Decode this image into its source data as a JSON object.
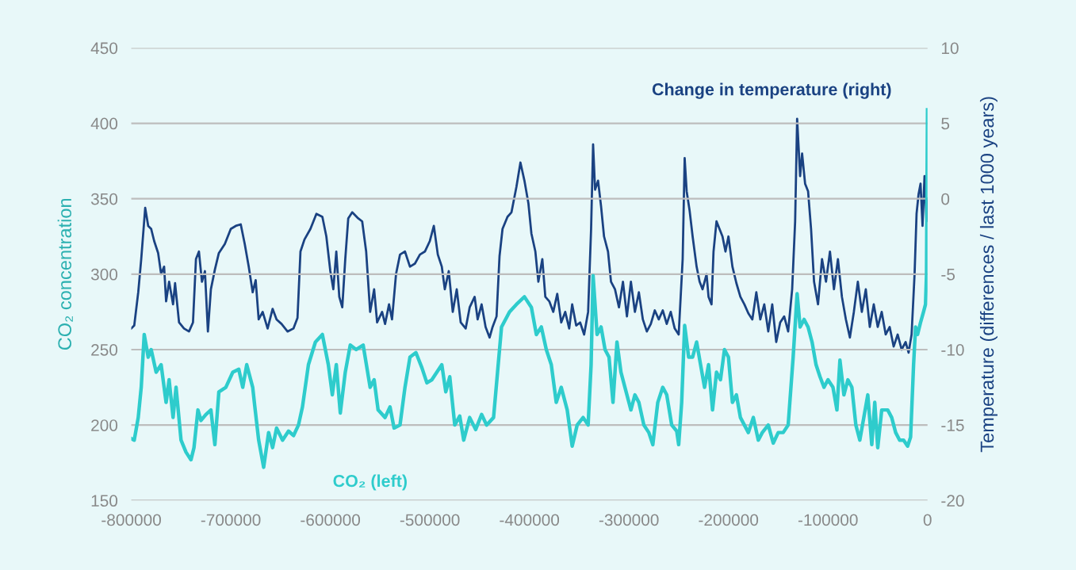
{
  "chart_data": {
    "type": "line",
    "ylabel": "CO₂ concentration",
    "y2label": "Temperature (differences / last 1000 years)",
    "xlim": [
      -800000,
      0
    ],
    "xticks": [
      -800000,
      -700000,
      -600000,
      -500000,
      -400000,
      -300000,
      -200000,
      -100000,
      0
    ],
    "ylim": [
      150,
      450
    ],
    "yticks": [
      150,
      200,
      250,
      300,
      350,
      400,
      450
    ],
    "y2lim": [
      -20,
      10
    ],
    "y2ticks": [
      -20,
      -15,
      -10,
      -5,
      0,
      5,
      10
    ],
    "grid": "y",
    "legend": false,
    "marker": "none",
    "line_style": "solid",
    "series": [
      {
        "name": "CO₂ (left)",
        "color": "#2ecccc",
        "axis": "y",
        "x": [
          -800000,
          -797000,
          -793000,
          -790000,
          -787000,
          -783000,
          -780000,
          -775000,
          -770000,
          -765000,
          -762000,
          -758000,
          -755000,
          -750000,
          -745000,
          -740000,
          -737000,
          -733000,
          -730000,
          -725000,
          -720000,
          -716000,
          -712000,
          -705000,
          -698000,
          -692000,
          -688000,
          -684000,
          -678000,
          -676000,
          -672000,
          -667000,
          -662000,
          -658000,
          -654000,
          -648000,
          -642000,
          -637000,
          -632000,
          -628000,
          -622000,
          -615000,
          -608000,
          -602000,
          -598000,
          -594000,
          -590000,
          -585000,
          -580000,
          -574000,
          -567000,
          -560000,
          -556000,
          -552000,
          -545000,
          -540000,
          -536000,
          -530000,
          -525000,
          -520000,
          -514000,
          -508000,
          -503000,
          -498000,
          -493000,
          -488000,
          -484000,
          -480000,
          -475000,
          -470000,
          -466000,
          -460000,
          -454000,
          -448000,
          -443000,
          -436000,
          -432000,
          -428000,
          -420000,
          -413000,
          -405000,
          -398000,
          -393000,
          -388000,
          -383000,
          -378000,
          -373000,
          -368000,
          -362000,
          -357000,
          -352000,
          -346000,
          -341000,
          -338000,
          -336000,
          -332000,
          -328000,
          -324000,
          -320000,
          -316000,
          -312000,
          -308000,
          -304000,
          -298000,
          -294000,
          -290000,
          -285000,
          -280000,
          -276000,
          -271000,
          -266000,
          -262000,
          -257000,
          -252000,
          -250000,
          -247000,
          -244000,
          -240000,
          -236000,
          -232000,
          -228000,
          -224000,
          -220000,
          -216000,
          -212000,
          -208000,
          -204000,
          -200000,
          -196000,
          -192000,
          -188000,
          -184000,
          -180000,
          -175000,
          -170000,
          -166000,
          -160000,
          -155000,
          -150000,
          -145000,
          -140000,
          -135000,
          -131000,
          -128000,
          -124000,
          -120000,
          -116000,
          -112000,
          -108000,
          -104000,
          -100000,
          -95000,
          -91000,
          -88000,
          -84000,
          -80000,
          -76000,
          -72000,
          -68000,
          -64000,
          -60000,
          -56000,
          -53000,
          -50000,
          -46000,
          -40000,
          -36000,
          -32000,
          -28000,
          -24000,
          -20000,
          -17000,
          -14000,
          -12000,
          -10000,
          -7000,
          -4000,
          -2000,
          -1000,
          0
        ],
        "values": [
          191,
          190,
          205,
          225,
          260,
          245,
          250,
          235,
          240,
          215,
          230,
          205,
          225,
          190,
          182,
          177,
          185,
          210,
          203,
          207,
          210,
          187,
          222,
          225,
          235,
          237,
          225,
          240,
          225,
          213,
          190,
          172,
          195,
          185,
          198,
          190,
          196,
          193,
          200,
          212,
          240,
          255,
          260,
          240,
          220,
          240,
          208,
          235,
          253,
          250,
          253,
          225,
          230,
          210,
          205,
          212,
          198,
          200,
          225,
          245,
          248,
          238,
          228,
          230,
          235,
          240,
          222,
          232,
          200,
          206,
          190,
          205,
          197,
          207,
          200,
          205,
          235,
          265,
          275,
          280,
          285,
          278,
          260,
          265,
          250,
          240,
          215,
          225,
          210,
          186,
          200,
          205,
          200,
          240,
          299,
          260,
          265,
          250,
          245,
          215,
          255,
          235,
          225,
          210,
          220,
          215,
          200,
          195,
          187,
          215,
          225,
          220,
          200,
          196,
          187,
          215,
          266,
          245,
          245,
          255,
          240,
          225,
          240,
          210,
          235,
          230,
          250,
          245,
          215,
          220,
          205,
          200,
          195,
          205,
          190,
          195,
          200,
          188,
          195,
          195,
          200,
          245,
          287,
          265,
          270,
          265,
          255,
          240,
          232,
          225,
          230,
          225,
          210,
          243,
          220,
          230,
          225,
          200,
          190,
          205,
          220,
          187,
          215,
          185,
          210,
          210,
          205,
          195,
          190,
          190,
          186,
          192,
          240,
          265,
          260,
          268,
          275,
          280,
          300,
          409
        ]
      },
      {
        "name": "Change in temperature (right)",
        "color": "#1a4282",
        "axis": "y2",
        "x": [
          -800000,
          -797000,
          -793000,
          -790000,
          -786000,
          -783000,
          -780000,
          -777000,
          -773000,
          -770000,
          -767000,
          -765000,
          -762000,
          -758000,
          -756000,
          -752000,
          -747000,
          -742000,
          -738000,
          -735000,
          -732000,
          -729000,
          -726000,
          -723000,
          -720000,
          -716000,
          -712000,
          -706000,
          -700000,
          -695000,
          -690000,
          -686000,
          -682000,
          -678000,
          -675000,
          -672000,
          -668000,
          -663000,
          -658000,
          -654000,
          -649000,
          -643000,
          -637000,
          -633000,
          -630000,
          -626000,
          -620000,
          -614000,
          -608000,
          -604000,
          -600000,
          -597000,
          -594000,
          -591000,
          -588000,
          -585000,
          -582000,
          -578000,
          -572000,
          -568000,
          -564000,
          -560000,
          -556000,
          -553000,
          -548000,
          -545000,
          -541000,
          -538000,
          -534000,
          -530000,
          -525000,
          -520000,
          -515000,
          -510000,
          -505000,
          -500000,
          -496000,
          -492000,
          -488000,
          -485000,
          -481000,
          -477000,
          -473000,
          -469000,
          -464000,
          -460000,
          -455000,
          -452000,
          -448000,
          -444000,
          -440000,
          -437000,
          -433000,
          -430000,
          -427000,
          -422000,
          -418000,
          -413000,
          -409000,
          -405000,
          -401000,
          -398000,
          -394000,
          -391000,
          -387000,
          -384000,
          -380000,
          -376000,
          -372000,
          -368000,
          -364000,
          -360000,
          -357000,
          -353000,
          -349000,
          -345000,
          -341000,
          -338000,
          -336000,
          -334000,
          -331000,
          -328000,
          -325000,
          -321000,
          -318000,
          -314000,
          -310000,
          -306000,
          -302000,
          -298000,
          -294000,
          -290000,
          -286000,
          -282000,
          -278000,
          -274000,
          -270000,
          -266000,
          -262000,
          -258000,
          -254000,
          -250000,
          -246000,
          -244000,
          -242000,
          -239000,
          -236000,
          -232000,
          -229000,
          -226000,
          -222000,
          -220000,
          -217000,
          -215000,
          -212000,
          -209000,
          -206000,
          -203000,
          -200000,
          -196000,
          -192000,
          -188000,
          -184000,
          -180000,
          -176000,
          -172000,
          -168000,
          -164000,
          -160000,
          -156000,
          -152000,
          -148000,
          -144000,
          -140000,
          -136000,
          -133000,
          -131000,
          -128000,
          -126000,
          -123000,
          -120000,
          -117000,
          -114000,
          -110000,
          -106000,
          -102000,
          -98000,
          -94000,
          -90000,
          -86000,
          -82000,
          -78000,
          -74000,
          -70000,
          -66000,
          -62000,
          -58000,
          -54000,
          -50000,
          -46000,
          -42000,
          -38000,
          -34000,
          -30000,
          -26000,
          -22000,
          -19000,
          -16000,
          -13000,
          -11000,
          -9000,
          -7000,
          -5000,
          -3000,
          -1000,
          0
        ],
        "values": [
          -8.6,
          -8.4,
          -6.2,
          -4,
          -0.6,
          -1.8,
          -2,
          -2.8,
          -3.6,
          -5,
          -4.5,
          -6.8,
          -5.5,
          -7,
          -5.6,
          -8.2,
          -8.6,
          -8.8,
          -8.2,
          -4,
          -3.5,
          -5.5,
          -4.8,
          -8.8,
          -6,
          -4.7,
          -3.6,
          -3,
          -2,
          -1.8,
          -1.7,
          -3,
          -4.5,
          -6.2,
          -5.4,
          -8,
          -7.5,
          -8.6,
          -7.3,
          -8,
          -8.3,
          -8.8,
          -8.6,
          -7.9,
          -3.5,
          -2.7,
          -2,
          -1,
          -1.2,
          -2.5,
          -4.8,
          -6,
          -3.5,
          -6.5,
          -7.2,
          -4,
          -1.3,
          -0.9,
          -1.3,
          -1.5,
          -3.5,
          -7.5,
          -6,
          -8.2,
          -7.5,
          -8.3,
          -7,
          -8,
          -5,
          -3.7,
          -3.5,
          -4.5,
          -4.3,
          -3.7,
          -3.5,
          -2.8,
          -1.8,
          -3.7,
          -4.5,
          -6,
          -4.8,
          -7.5,
          -6,
          -8.2,
          -8.6,
          -7.2,
          -6.5,
          -8,
          -7,
          -8.5,
          -9.2,
          -8.5,
          -7.8,
          -3.8,
          -2,
          -1.2,
          -0.9,
          0.8,
          2.4,
          1.2,
          -0.3,
          -2.3,
          -3.5,
          -5.5,
          -4,
          -6.5,
          -6.8,
          -7.5,
          -6.3,
          -8.2,
          -7.5,
          -8.6,
          -7,
          -8.4,
          -8.2,
          -9,
          -7.5,
          -2,
          3.6,
          0.6,
          1.2,
          -0.5,
          -2.5,
          -3.5,
          -5.5,
          -6,
          -7.2,
          -5.5,
          -7.8,
          -5.5,
          -7.5,
          -6.2,
          -8,
          -8.8,
          -8.3,
          -7.4,
          -8,
          -7.4,
          -8.3,
          -7.5,
          -8.6,
          -9,
          -4,
          2.7,
          0.5,
          -0.8,
          -2.5,
          -4.5,
          -5.5,
          -6,
          -5,
          -6.5,
          -7,
          -3.5,
          -1.5,
          -2,
          -2.5,
          -3.5,
          -2.5,
          -4.5,
          -5.6,
          -6.5,
          -7,
          -7.6,
          -8,
          -6.2,
          -8,
          -7,
          -8.8,
          -7,
          -9.5,
          -8.2,
          -7.8,
          -8.8,
          -6,
          -1.5,
          5.3,
          1.5,
          3,
          1,
          0.5,
          -2,
          -5.5,
          -7,
          -4,
          -5.5,
          -3.5,
          -6,
          -4,
          -6.5,
          -8,
          -9.2,
          -7.5,
          -5.5,
          -7.5,
          -6,
          -8.5,
          -7,
          -8.5,
          -7.5,
          -9,
          -8.5,
          -9.8,
          -9,
          -10,
          -9.5,
          -10.2,
          -9,
          -5,
          -1,
          0.3,
          1,
          -1.8,
          1.5,
          -1.5,
          0
        ]
      }
    ]
  }
}
